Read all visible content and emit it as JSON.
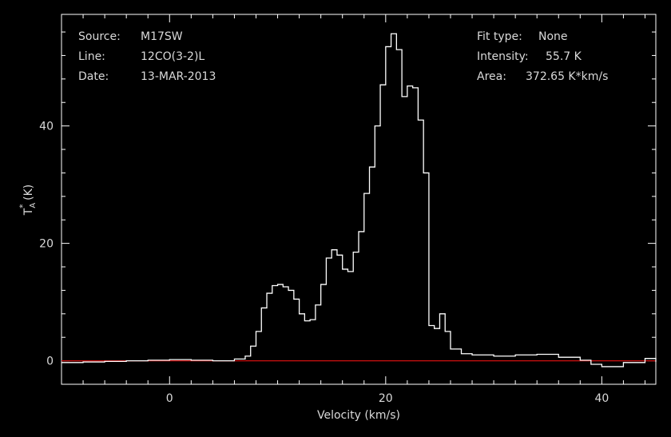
{
  "chart_data": {
    "type": "line",
    "xlabel": "Velocity (km/s)",
    "ylabel_main": "T",
    "ylabel_sup": "*",
    "ylabel_sub": "A",
    "ylabel_unit": " (K)",
    "xlim": [
      -10,
      45
    ],
    "ylim": [
      -4,
      59
    ],
    "x_ticks": [
      0,
      20,
      40
    ],
    "y_ticks": [
      0,
      20,
      40
    ],
    "info_left": [
      {
        "key": "Source:",
        "value": "M17SW"
      },
      {
        "key": "Line:",
        "value": "12CO(3-2)L"
      },
      {
        "key": "Date:",
        "value": "13-MAR-2013"
      }
    ],
    "info_right": [
      {
        "key": "Fit type:",
        "value": "None"
      },
      {
        "key": "Intensity:",
        "value": "55.7 K"
      },
      {
        "key": "Area:",
        "value": "372.65 K*km/s"
      }
    ],
    "colors": {
      "spectrum": "#ffffff",
      "baseline": "#d01010",
      "frame": "#ffffff",
      "text": "#d9d9d9"
    },
    "baseline_y": 0,
    "series": [
      {
        "x": [
          -10,
          -8,
          -6,
          -4,
          -2,
          0,
          2,
          4,
          6,
          7,
          7.5,
          8,
          8.5,
          9,
          9.5,
          10,
          10.5,
          11,
          11.5,
          12,
          12.5,
          13,
          13.5,
          14,
          14.5,
          15,
          15.5,
          16,
          16.5,
          17,
          17.5,
          18,
          18.5,
          19,
          19.5,
          20,
          20.5,
          21,
          21.5,
          22,
          22.5,
          23,
          23.5,
          24,
          24.5,
          25,
          25.5,
          26,
          27,
          28,
          30,
          32,
          34,
          36,
          38,
          39,
          40,
          42,
          44,
          45
        ],
        "y": [
          -0.3,
          -0.2,
          -0.1,
          0.0,
          0.1,
          0.2,
          0.1,
          0.0,
          0.3,
          0.8,
          2.5,
          5.0,
          9.0,
          11.5,
          12.8,
          13.0,
          12.6,
          12.0,
          10.5,
          8.0,
          6.8,
          7.0,
          9.5,
          13.0,
          17.5,
          18.9,
          18.0,
          15.6,
          15.2,
          18.5,
          22.0,
          28.5,
          33.0,
          40.0,
          47.0,
          53.5,
          55.7,
          53.0,
          45.0,
          46.8,
          46.5,
          41.0,
          32.0,
          6.0,
          5.5,
          8.0,
          5.0,
          2.0,
          1.2,
          1.0,
          0.8,
          1.0,
          1.1,
          0.6,
          0.1,
          -0.6,
          -1.0,
          -0.3,
          0.4,
          -0.2
        ]
      }
    ]
  }
}
